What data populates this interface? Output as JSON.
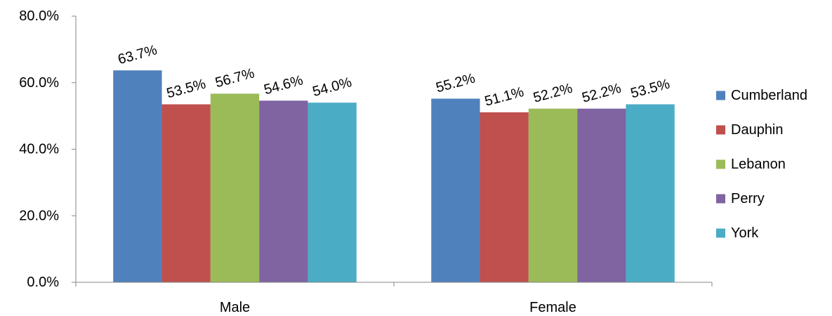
{
  "chart_data": {
    "type": "bar",
    "categories": [
      "Male",
      "Female"
    ],
    "series": [
      {
        "name": "Cumberland",
        "values": [
          63.7,
          55.2
        ],
        "labels": [
          "63.7%",
          "55.2%"
        ],
        "color": "#4F81BD"
      },
      {
        "name": "Dauphin",
        "values": [
          53.5,
          51.1
        ],
        "labels": [
          "53.5%",
          "51.1%"
        ],
        "color": "#C0504D"
      },
      {
        "name": "Lebanon",
        "values": [
          56.7,
          52.2
        ],
        "labels": [
          "56.7%",
          "52.2%"
        ],
        "color": "#9BBB59"
      },
      {
        "name": "Perry",
        "values": [
          54.6,
          52.2
        ],
        "labels": [
          "54.6%",
          "52.2%"
        ],
        "color": "#8064A2"
      },
      {
        "name": "York",
        "values": [
          54.0,
          53.5
        ],
        "labels": [
          "54.0%",
          "53.5%"
        ],
        "color": "#4BACC6"
      }
    ],
    "yticks": [
      "0.0%",
      "20.0%",
      "40.0%",
      "60.0%",
      "80.0%"
    ],
    "ylim": [
      0,
      80
    ],
    "title": "",
    "xlabel": "",
    "ylabel": "",
    "legend_position": "right",
    "grid": false
  }
}
